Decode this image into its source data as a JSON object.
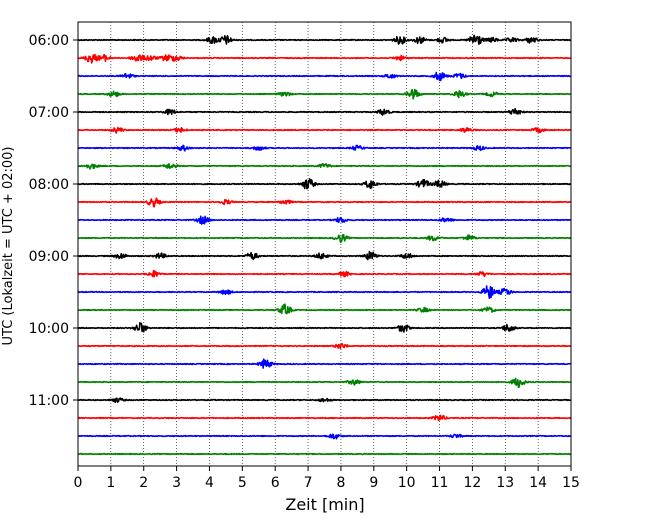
{
  "chart_data": {
    "type": "line",
    "title": "",
    "xlabel": "Zeit  [min]",
    "ylabel": "UTC (Lokalzeit = UTC + 02:00)",
    "xlim": [
      0,
      15
    ],
    "x_ticks": [
      "0",
      "1",
      "2",
      "3",
      "4",
      "5",
      "6",
      "7",
      "8",
      "9",
      "10",
      "11",
      "12",
      "13",
      "14",
      "15"
    ],
    "y_tick_labels": [
      "06:00",
      "07:00",
      "08:00",
      "09:00",
      "10:00",
      "11:00"
    ],
    "minutes_per_line": 15,
    "grid": "vertical dotted",
    "line_colors": [
      "#000000",
      "#ff0000",
      "#0000ff",
      "#008000"
    ],
    "lines": [
      {
        "start": "06:00",
        "color": "#000000",
        "events": [
          [
            4.1,
            0.4
          ],
          [
            4.5,
            0.5
          ],
          [
            9.8,
            0.45
          ],
          [
            10.4,
            0.4
          ],
          [
            11.1,
            0.3
          ],
          [
            12.1,
            0.8
          ],
          [
            12.6,
            0.25
          ],
          [
            13.2,
            0.25
          ],
          [
            13.8,
            0.35
          ]
        ]
      },
      {
        "start": "06:15",
        "color": "#ff0000",
        "events": [
          [
            0.4,
            0.55
          ],
          [
            0.8,
            0.35
          ],
          [
            1.8,
            0.45
          ],
          [
            2.2,
            0.3
          ],
          [
            2.7,
            0.35
          ],
          [
            3.0,
            0.3
          ],
          [
            9.8,
            0.25
          ]
        ]
      },
      {
        "start": "06:30",
        "color": "#0000ff",
        "events": [
          [
            1.5,
            0.3
          ],
          [
            9.5,
            0.25
          ],
          [
            11.0,
            0.5
          ],
          [
            11.6,
            0.3
          ]
        ]
      },
      {
        "start": "06:45",
        "color": "#008000",
        "events": [
          [
            1.1,
            0.3
          ],
          [
            6.3,
            0.25
          ],
          [
            10.2,
            0.6
          ],
          [
            11.6,
            0.4
          ],
          [
            12.6,
            0.25
          ]
        ]
      },
      {
        "start": "07:00",
        "color": "#000000",
        "events": [
          [
            2.8,
            0.3
          ],
          [
            9.3,
            0.35
          ],
          [
            13.3,
            0.4
          ]
        ]
      },
      {
        "start": "07:15",
        "color": "#ff0000",
        "events": [
          [
            1.2,
            0.3
          ],
          [
            3.1,
            0.25
          ],
          [
            11.8,
            0.25
          ],
          [
            14.0,
            0.25
          ]
        ]
      },
      {
        "start": "07:30",
        "color": "#0000ff",
        "events": [
          [
            3.2,
            0.3
          ],
          [
            5.5,
            0.25
          ],
          [
            8.5,
            0.25
          ],
          [
            12.2,
            0.25
          ]
        ]
      },
      {
        "start": "07:45",
        "color": "#008000",
        "events": [
          [
            0.4,
            0.3
          ],
          [
            2.8,
            0.3
          ],
          [
            7.5,
            0.25
          ]
        ]
      },
      {
        "start": "08:00",
        "color": "#000000",
        "events": [
          [
            7.0,
            0.65
          ],
          [
            8.9,
            0.5
          ],
          [
            10.5,
            0.5
          ],
          [
            11.0,
            0.4
          ]
        ]
      },
      {
        "start": "08:15",
        "color": "#ff0000",
        "events": [
          [
            2.3,
            0.5
          ],
          [
            4.5,
            0.25
          ],
          [
            6.3,
            0.25
          ]
        ]
      },
      {
        "start": "08:30",
        "color": "#0000ff",
        "events": [
          [
            3.8,
            0.45
          ],
          [
            8.0,
            0.3
          ],
          [
            11.2,
            0.25
          ]
        ]
      },
      {
        "start": "08:45",
        "color": "#008000",
        "events": [
          [
            8.0,
            0.45
          ],
          [
            10.8,
            0.3
          ],
          [
            11.9,
            0.3
          ]
        ]
      },
      {
        "start": "09:00",
        "color": "#000000",
        "events": [
          [
            1.3,
            0.3
          ],
          [
            2.5,
            0.3
          ],
          [
            5.3,
            0.4
          ],
          [
            7.4,
            0.35
          ],
          [
            8.9,
            0.5
          ],
          [
            10.0,
            0.3
          ]
        ]
      },
      {
        "start": "09:15",
        "color": "#ff0000",
        "events": [
          [
            2.3,
            0.35
          ],
          [
            8.1,
            0.25
          ],
          [
            12.3,
            0.25
          ]
        ]
      },
      {
        "start": "09:30",
        "color": "#0000ff",
        "events": [
          [
            4.5,
            0.25
          ],
          [
            12.5,
            0.75
          ],
          [
            13.0,
            0.4
          ]
        ]
      },
      {
        "start": "09:45",
        "color": "#008000",
        "events": [
          [
            6.3,
            0.6
          ],
          [
            10.5,
            0.25
          ],
          [
            12.5,
            0.3
          ]
        ]
      },
      {
        "start": "10:00",
        "color": "#000000",
        "events": [
          [
            1.9,
            0.6
          ],
          [
            9.9,
            0.45
          ],
          [
            13.1,
            0.45
          ]
        ]
      },
      {
        "start": "10:15",
        "color": "#ff0000",
        "events": [
          [
            8.0,
            0.3
          ]
        ]
      },
      {
        "start": "10:30",
        "color": "#0000ff",
        "events": [
          [
            5.7,
            0.55
          ]
        ]
      },
      {
        "start": "10:45",
        "color": "#008000",
        "events": [
          [
            8.4,
            0.3
          ],
          [
            13.4,
            0.6
          ]
        ]
      },
      {
        "start": "11:00",
        "color": "#000000",
        "events": [
          [
            1.2,
            0.25
          ],
          [
            7.5,
            0.2
          ]
        ]
      },
      {
        "start": "11:15",
        "color": "#ff0000",
        "events": [
          [
            11.0,
            0.35
          ]
        ]
      },
      {
        "start": "11:30",
        "color": "#0000ff",
        "events": [
          [
            7.8,
            0.3
          ],
          [
            11.5,
            0.2
          ]
        ]
      },
      {
        "start": "11:45",
        "color": "#008000",
        "events": []
      }
    ]
  }
}
